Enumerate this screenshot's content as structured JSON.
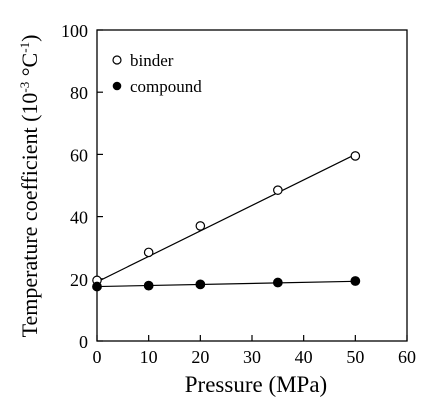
{
  "chart_data": {
    "type": "scatter",
    "title": "",
    "xlabel": "Pressure (MPa)",
    "ylabel_main": "Temperature coefficient (10",
    "ylabel_exp1": "-3",
    "ylabel_mid": " °C",
    "ylabel_exp2": "-1",
    "ylabel_end": ")",
    "xlim": [
      0,
      60
    ],
    "ylim": [
      0,
      100
    ],
    "xticks": [
      "0",
      "10",
      "20",
      "30",
      "40",
      "50",
      "60"
    ],
    "yticks": [
      "0",
      "20",
      "40",
      "60",
      "80",
      "100"
    ],
    "grid": false,
    "legend_position": "top-left",
    "series": [
      {
        "name": "binder",
        "marker": "open-circle",
        "x": [
          0,
          10,
          20,
          35,
          50
        ],
        "y": [
          19.5,
          28.5,
          37,
          48.5,
          59.5
        ],
        "fit": {
          "x": [
            0,
            50
          ],
          "y": [
            19,
            60
          ]
        }
      },
      {
        "name": "compound",
        "marker": "filled-circle",
        "x": [
          0,
          10,
          20,
          35,
          50
        ],
        "y": [
          17.5,
          17.8,
          18.2,
          18.8,
          19.3
        ],
        "fit": {
          "x": [
            0,
            50
          ],
          "y": [
            17.5,
            19.2
          ]
        }
      }
    ]
  }
}
